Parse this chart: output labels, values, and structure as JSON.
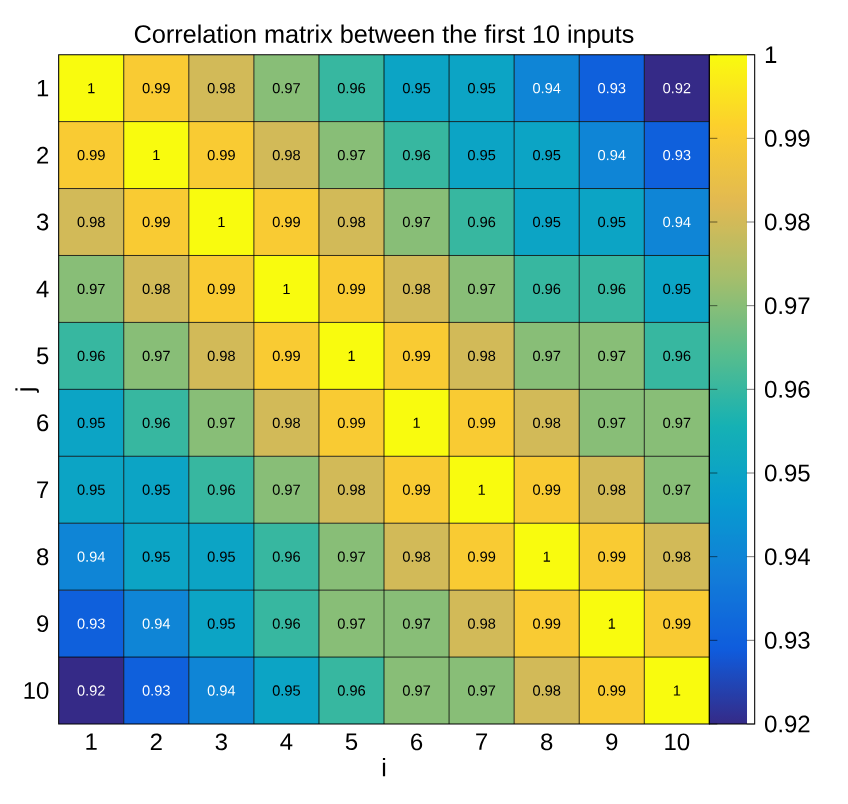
{
  "chart_data": {
    "type": "heatmap",
    "title": "Correlation matrix between the first 10 inputs",
    "xlabel": "i",
    "ylabel": "j",
    "categories": [
      "1",
      "2",
      "3",
      "4",
      "5",
      "6",
      "7",
      "8",
      "9",
      "10"
    ],
    "y_categories": [
      "1",
      "2",
      "3",
      "4",
      "5",
      "6",
      "7",
      "8",
      "9",
      "10"
    ],
    "cells": [
      [
        1,
        0.99,
        0.98,
        0.97,
        0.96,
        0.95,
        0.95,
        0.94,
        0.93,
        0.92
      ],
      [
        0.99,
        1,
        0.99,
        0.98,
        0.97,
        0.96,
        0.95,
        0.95,
        0.94,
        0.93
      ],
      [
        0.98,
        0.99,
        1,
        0.99,
        0.98,
        0.97,
        0.96,
        0.95,
        0.95,
        0.94
      ],
      [
        0.97,
        0.98,
        0.99,
        1,
        0.99,
        0.98,
        0.97,
        0.96,
        0.96,
        0.95
      ],
      [
        0.96,
        0.97,
        0.98,
        0.99,
        1,
        0.99,
        0.98,
        0.97,
        0.97,
        0.96
      ],
      [
        0.95,
        0.96,
        0.97,
        0.98,
        0.99,
        1,
        0.99,
        0.98,
        0.97,
        0.97
      ],
      [
        0.95,
        0.95,
        0.96,
        0.97,
        0.98,
        0.99,
        1,
        0.99,
        0.98,
        0.97
      ],
      [
        0.94,
        0.95,
        0.95,
        0.96,
        0.97,
        0.98,
        0.99,
        1,
        0.99,
        0.98
      ],
      [
        0.93,
        0.94,
        0.95,
        0.96,
        0.97,
        0.97,
        0.98,
        0.99,
        1,
        0.99
      ],
      [
        0.92,
        0.93,
        0.94,
        0.95,
        0.96,
        0.97,
        0.97,
        0.98,
        0.99,
        1
      ]
    ],
    "clim": [
      0.92,
      1
    ],
    "cticks": [
      0.92,
      0.93,
      0.94,
      0.95,
      0.96,
      0.97,
      0.98,
      0.99,
      1
    ],
    "data_labels": true,
    "grid": true
  }
}
